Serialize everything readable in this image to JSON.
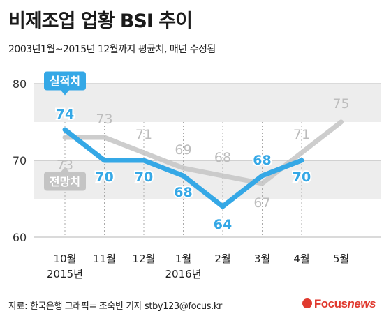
{
  "title": "비제조업 업황 BSI 추이",
  "subtitle": "2003년1월~2015년 12월까지 평균치, 매년 수정됨",
  "source": "자료: 한국은행   그래픽= 조숙빈 기자 stby123@focus.kr",
  "logo": {
    "brand": "Focus",
    "suffix": "news",
    "icon": "focus-circle-icon"
  },
  "colors": {
    "actual": "#35a8e6",
    "forecast": "#c4c4c4",
    "band": "#ededed"
  },
  "chart_data": {
    "type": "line",
    "categories": [
      "10월",
      "11월",
      "12월",
      "1월",
      "2월",
      "3월",
      "4월",
      "5월"
    ],
    "year_labels": [
      {
        "index": 0,
        "text": "2015년"
      },
      {
        "index": 3,
        "text": "2016년"
      }
    ],
    "series": [
      {
        "name": "실적치",
        "values": [
          74,
          70,
          70,
          68,
          64,
          68,
          70,
          null
        ]
      },
      {
        "name": "전망치",
        "values": [
          73,
          73,
          71,
          69,
          68,
          67,
          71,
          75
        ]
      }
    ],
    "yticks": [
      60,
      70,
      80
    ],
    "ylim": [
      60,
      80
    ],
    "grid": true,
    "bands": [
      [
        75,
        80
      ],
      [
        65,
        70
      ]
    ]
  }
}
